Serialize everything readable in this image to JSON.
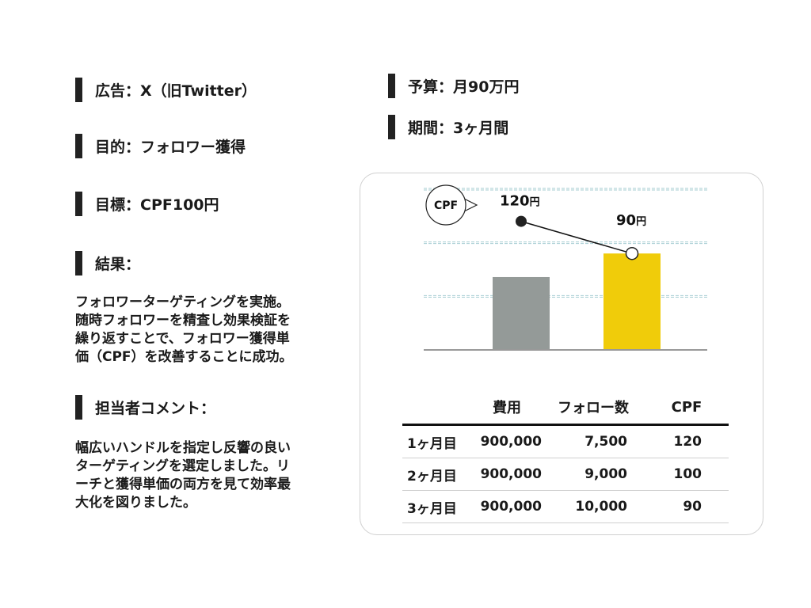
{
  "left": {
    "ad": "広告：X（旧Twitter）",
    "purpose": "目的：フォロワー獲得",
    "goal": "目標：CPF100円",
    "result_heading": "結果：",
    "result_lines": [
      "フォロワーターゲティングを実施。",
      "随時フォロワーを精査し効果検証を",
      "繰り返すことで、フォロワー獲得単",
      "価（CPF）を改善することに成功。"
    ],
    "comment_heading": "担当者コメント：",
    "comment_lines": [
      "幅広いハンドルを指定し反響の良い",
      "ターゲティングを選定しました。リ",
      "ーチと獲得単価の両方を見て効率最",
      "大化を図りました。"
    ]
  },
  "right": {
    "budget": "予算：月90万円",
    "period": "期間：3ヶ月間"
  },
  "chart_data": {
    "type": "bar",
    "categories": [
      "",
      ""
    ],
    "bar_values": [
      68,
      90
    ],
    "bar_colors": [
      "#949a98",
      "#f0cc0a"
    ],
    "line_series": {
      "values": [
        120,
        90
      ],
      "labels": [
        "120",
        "90"
      ],
      "unit": "円"
    },
    "badge": "CPF",
    "ylim": [
      0,
      150
    ],
    "gridlines": [
      50,
      100,
      150
    ],
    "grid_color": "#a6cdd2",
    "axis_color": "#999999"
  },
  "table": {
    "headers": [
      "",
      "費用",
      "フォロー数",
      "CPF"
    ],
    "rows": [
      [
        "1ヶ月目",
        "900,000",
        "7,500",
        "120"
      ],
      [
        "2ヶ月目",
        "900,000",
        "9,000",
        "100"
      ],
      [
        "3ヶ月目",
        "900,000",
        "10,000",
        "90"
      ]
    ]
  }
}
